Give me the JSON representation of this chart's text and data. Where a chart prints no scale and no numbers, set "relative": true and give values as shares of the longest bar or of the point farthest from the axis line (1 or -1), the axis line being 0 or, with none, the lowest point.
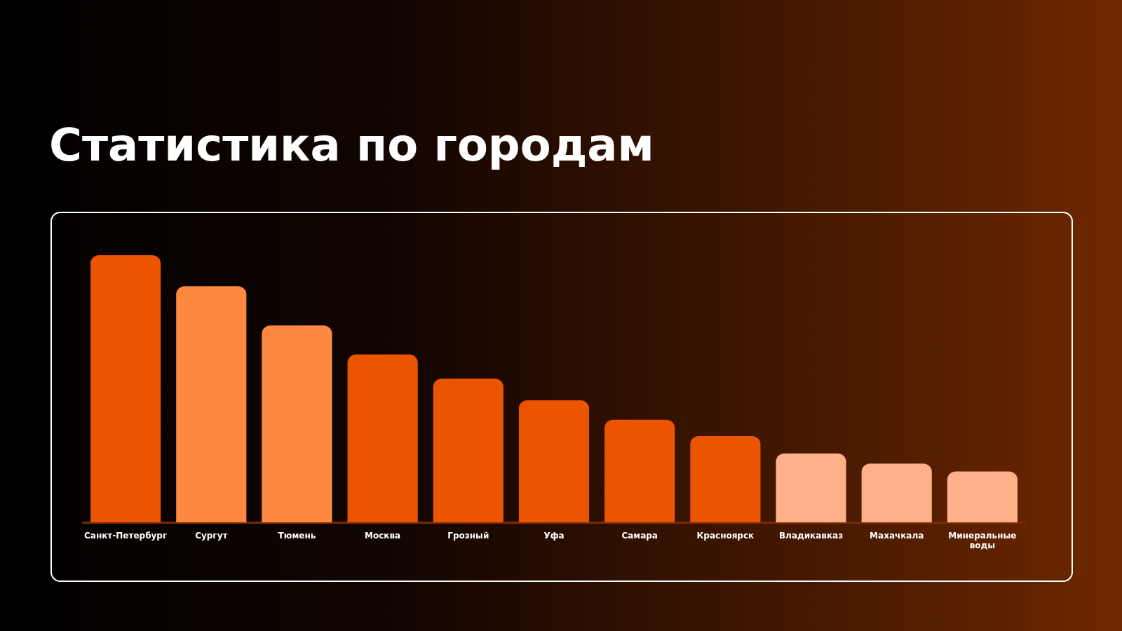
{
  "chart_data": {
    "type": "bar",
    "title": "Статистика по городам",
    "relative": true,
    "categories": [
      "Санкт-Петербург",
      "Сургут",
      "Тюмень",
      "Москва",
      "Грозный",
      "Уфа",
      "Самара",
      "Красноярск",
      "Владикавказ",
      "Махачкала",
      "Минеральные воды"
    ],
    "values": [
      1,
      0.884,
      0.737,
      0.629,
      0.538,
      0.457,
      0.384,
      0.323,
      0.258,
      0.22,
      0.191
    ],
    "colors": [
      "#ec5500",
      "#ff8840",
      "#ff8840",
      "#ec5500",
      "#ec5500",
      "#ec5500",
      "#ec5500",
      "#ec5500",
      "#fdb08a",
      "#fdb08a",
      "#fdb08a"
    ],
    "grid": false,
    "legend": false
  }
}
